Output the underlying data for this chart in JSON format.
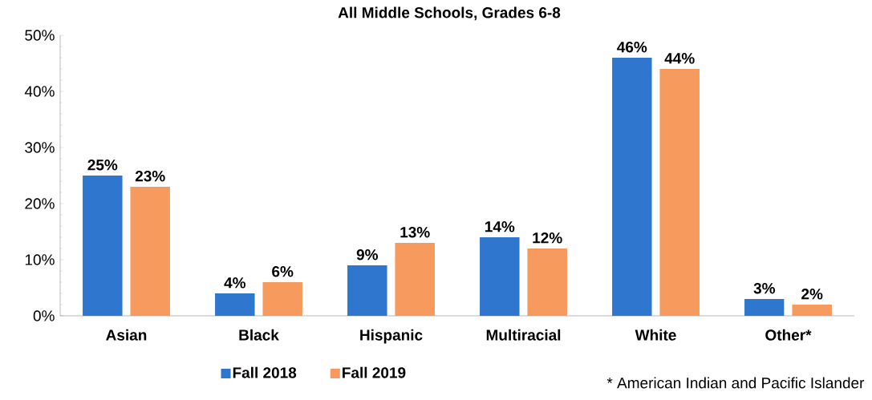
{
  "chart_data": {
    "type": "bar",
    "title": "All Middle Schools, Grades 6-8",
    "categories": [
      "Asian",
      "Black",
      "Hispanic",
      "Multiracial",
      "White",
      "Other*"
    ],
    "series": [
      {
        "name": "Fall 2018",
        "color": "#2f76cf",
        "values": [
          25,
          4,
          9,
          14,
          46,
          3
        ],
        "value_labels": [
          "25%",
          "4%",
          "9%",
          "14%",
          "46%",
          "3%"
        ]
      },
      {
        "name": "Fall 2019",
        "color": "#f79a5e",
        "values": [
          23,
          6,
          13,
          12,
          44,
          2
        ],
        "value_labels": [
          "23%",
          "6%",
          "13%",
          "12%",
          "44%",
          "2%"
        ]
      }
    ],
    "ylim": [
      0,
      50
    ],
    "yticks": [
      {
        "value": 0,
        "label": "0%"
      },
      {
        "value": 10,
        "label": "10%"
      },
      {
        "value": 20,
        "label": "20%"
      },
      {
        "value": 30,
        "label": "30%"
      },
      {
        "value": 40,
        "label": "40%"
      },
      {
        "value": 50,
        "label": "50%"
      }
    ],
    "grid": false,
    "legend": "bottom",
    "annotations": [
      "* American Indian and Pacific Islander"
    ]
  }
}
